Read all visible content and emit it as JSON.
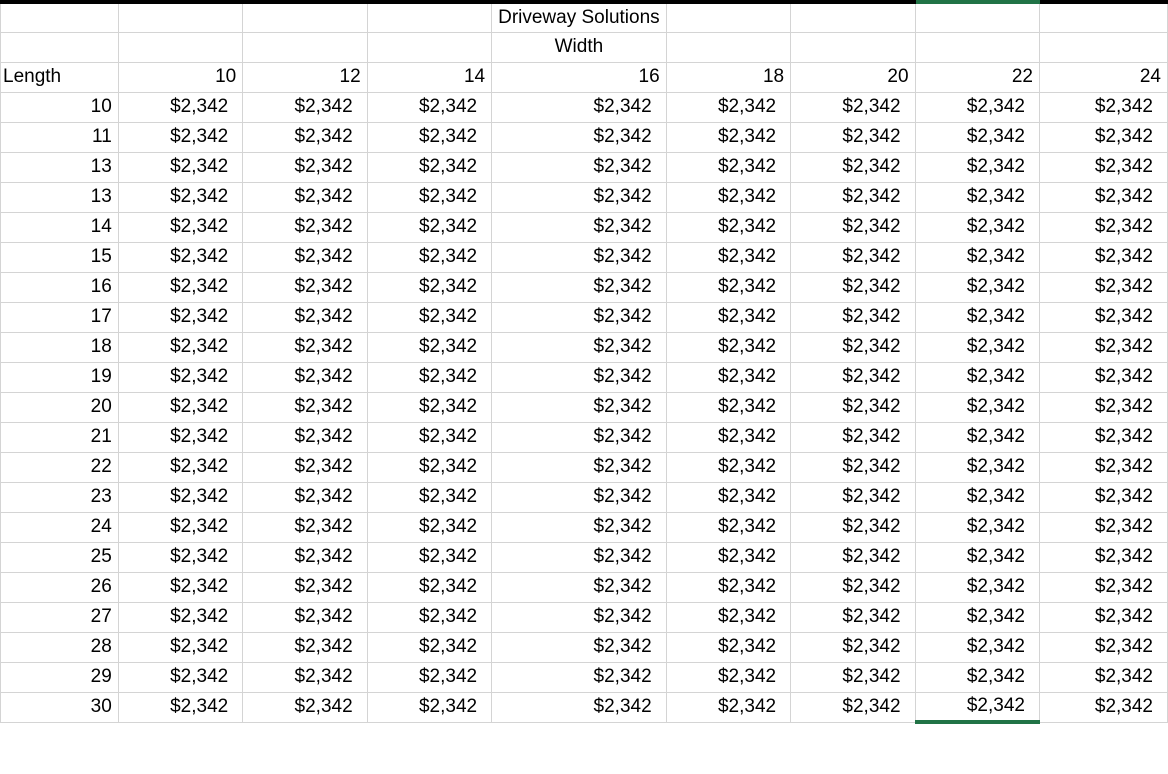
{
  "sheet": {
    "title": "Driveway Solutions",
    "width_label": "Width",
    "length_label": "Length",
    "widths": [
      "10",
      "12",
      "14",
      "16",
      "18",
      "20",
      "22",
      "24"
    ],
    "lengths": [
      "10",
      "11",
      "13",
      "13",
      "14",
      "15",
      "16",
      "17",
      "18",
      "19",
      "20",
      "21",
      "22",
      "23",
      "24",
      "25",
      "26",
      "27",
      "28",
      "29",
      "30"
    ],
    "cell_value": "$2,342",
    "selection_color": "#217346"
  }
}
